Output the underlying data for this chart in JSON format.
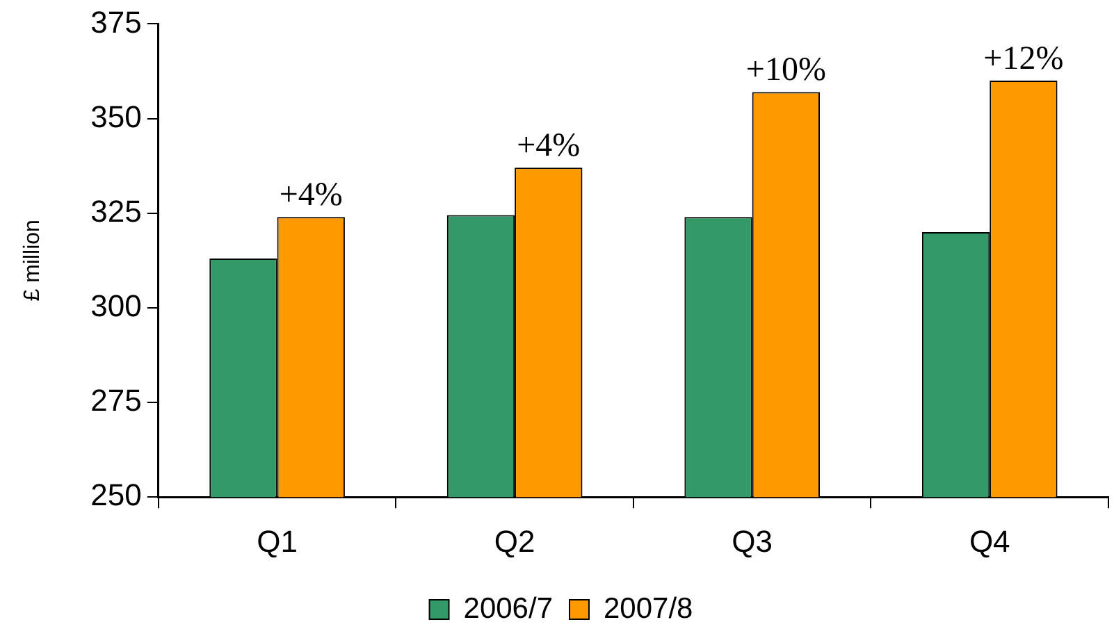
{
  "chart_data": {
    "type": "bar",
    "ylabel": "£ million",
    "categories": [
      "Q1",
      "Q2",
      "Q3",
      "Q4"
    ],
    "series": [
      {
        "name": "2006/7",
        "color": "#339966",
        "values": [
          313,
          324.5,
          324,
          320
        ]
      },
      {
        "name": "2007/8",
        "color": "#ff9900",
        "values": [
          324,
          337,
          357,
          360
        ]
      }
    ],
    "ylim": [
      250,
      375
    ],
    "yticks": [
      250,
      275,
      300,
      325,
      350,
      375
    ],
    "grid": false,
    "legend": "bottom",
    "annotations": [
      {
        "text": "+4%",
        "x": "Q1",
        "y": 324
      },
      {
        "text": "+4%",
        "x": "Q2",
        "y": 337
      },
      {
        "text": "+10%",
        "x": "Q3",
        "y": 357
      },
      {
        "text": "+12%",
        "x": "Q4",
        "y": 360
      }
    ]
  }
}
